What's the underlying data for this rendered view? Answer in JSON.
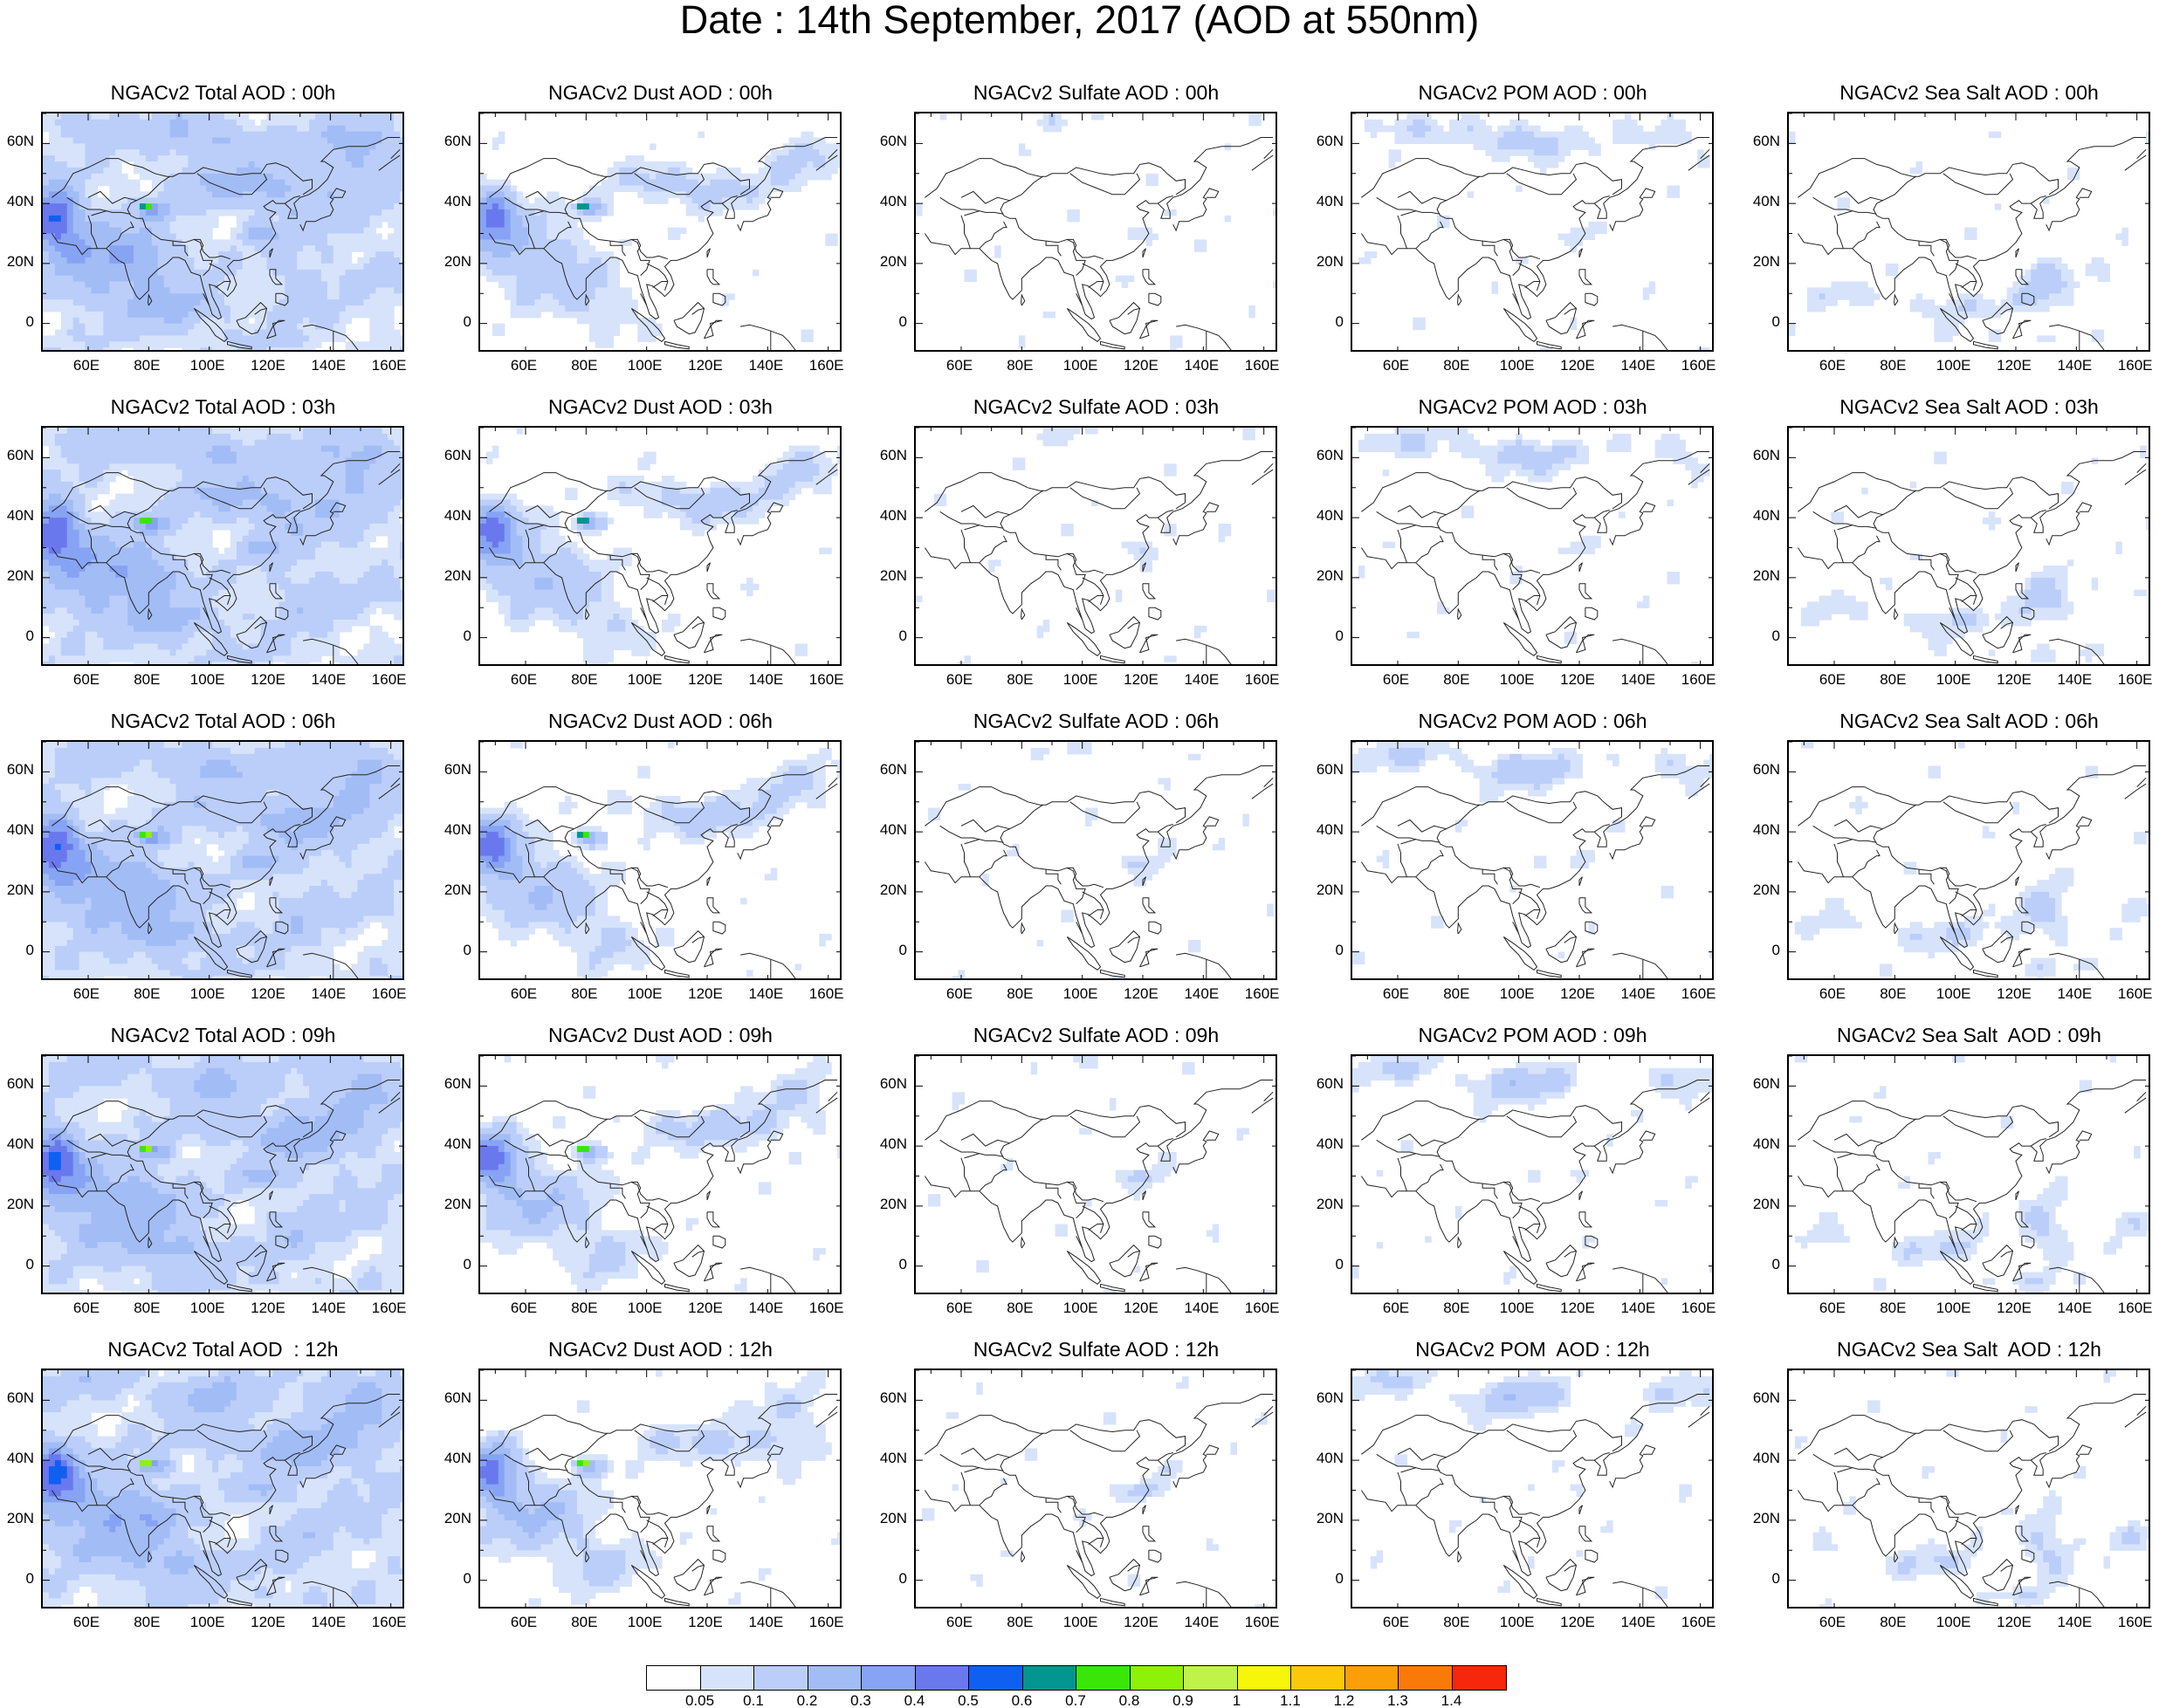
{
  "title": "Date : 14th September, 2017 (AOD at 550nm)",
  "panels": {
    "row_0": [
      "NGACv2 Total AOD : 00h",
      "NGACv2 Dust AOD : 00h",
      "NGACv2 Sulfate AOD : 00h",
      "NGACv2 POM AOD : 00h",
      "NGACv2 Sea Salt AOD : 00h"
    ],
    "row_1": [
      "NGACv2 Total AOD : 03h",
      "NGACv2 Dust AOD : 03h",
      "NGACv2 Sulfate AOD : 03h",
      "NGACv2 POM AOD : 03h",
      "NGACv2 Sea Salt AOD : 03h"
    ],
    "row_2": [
      "NGACv2 Total AOD : 06h",
      "NGACv2 Dust AOD : 06h",
      "NGACv2 Sulfate AOD : 06h",
      "NGACv2 POM AOD : 06h",
      "NGACv2 Sea Salt AOD : 06h"
    ],
    "row_3": [
      "NGACv2 Total AOD : 09h",
      "NGACv2 Dust AOD : 09h",
      "NGACv2 Sulfate AOD : 09h",
      "NGACv2 POM AOD : 09h",
      "NGACv2 Sea Salt  AOD : 09h"
    ],
    "row_4": [
      "NGACv2 Total AOD  : 12h",
      "NGACv2 Dust AOD : 12h",
      "NGACv2 Sulfate AOD : 12h",
      "NGACv2 POM  AOD : 12h",
      "NGACv2 Sea Salt  AOD : 12h"
    ]
  },
  "axes": {
    "lat_ticks": [
      "60N",
      "40N",
      "20N",
      "0"
    ],
    "lon_ticks": [
      "60E",
      "80E",
      "100E",
      "120E",
      "140E",
      "160E"
    ]
  },
  "colorbar": {
    "colors": [
      "#ffffff",
      "#d7e3fb",
      "#bbcef9",
      "#a2bcf6",
      "#87a3f4",
      "#6a78ed",
      "#0f5ff0",
      "#03958f",
      "#39e608",
      "#8ef208",
      "#bff34a",
      "#f7f60a",
      "#fbc80a",
      "#fb9f08",
      "#f97a08",
      "#f7270e"
    ],
    "labels": [
      "0.05",
      "0.1",
      "0.2",
      "0.3",
      "0.4",
      "0.5",
      "0.6",
      "0.7",
      "0.8",
      "0.9",
      "1",
      "1.1",
      "1.2",
      "1.3",
      "1.4"
    ]
  }
}
